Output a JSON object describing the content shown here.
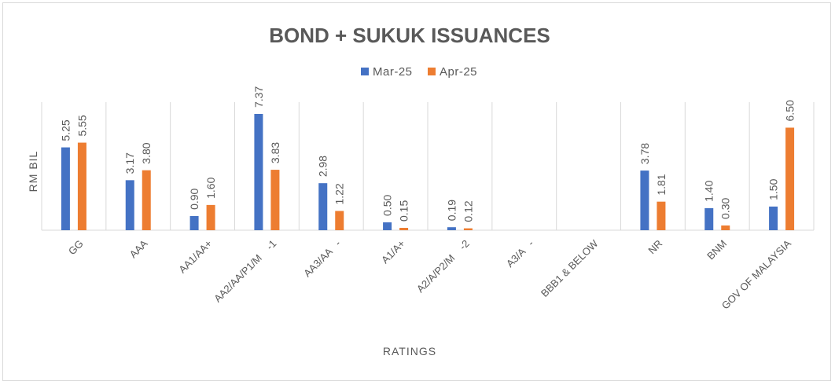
{
  "chart_data": {
    "type": "bar",
    "title": "BOND + SUKUK ISSUANCES",
    "xlabel": "RATINGS",
    "ylabel": "RM BIL",
    "ylim": [
      0,
      7.37
    ],
    "grid": "vertical category separators",
    "legend_position": "top",
    "categories": [
      "GG",
      "AAA",
      "AA1/AA+",
      "AA2/AA/P1/M    -1",
      "AA3/AA   -",
      "A1/A+",
      "A2/A/P2/M    -2",
      "A3/A   -",
      "BBB1 & BELOW",
      "NR",
      "BNM",
      "GOV OF MALAYSIA"
    ],
    "series": [
      {
        "name": "Mar-25",
        "color": "#4472c4",
        "values": [
          5.25,
          3.17,
          0.9,
          7.37,
          2.98,
          0.5,
          0.19,
          null,
          null,
          3.78,
          1.4,
          1.5
        ],
        "labels": [
          "5.25",
          "3.17",
          "0.90",
          "7.37",
          "2.98",
          "0.50",
          "0.19",
          "",
          "",
          "3.78",
          "1.40",
          "1.50"
        ]
      },
      {
        "name": "Apr-25",
        "color": "#ed7d31",
        "values": [
          5.55,
          3.8,
          1.6,
          3.83,
          1.22,
          0.15,
          0.12,
          null,
          null,
          1.81,
          0.3,
          6.5
        ],
        "labels": [
          "5.55",
          "3.80",
          "1.60",
          "3.83",
          "1.22",
          "0.15",
          "0.12",
          "",
          "",
          "1.81",
          "0.30",
          "6.50"
        ]
      }
    ]
  }
}
